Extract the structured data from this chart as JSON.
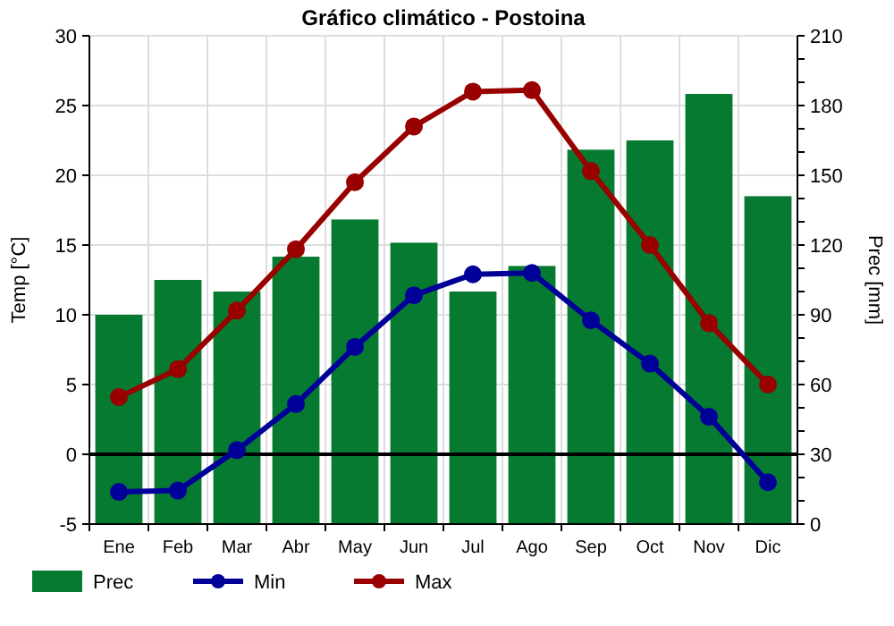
{
  "chart_data": {
    "type": "bar",
    "title": "Gráfico climático - Postoina",
    "ylabel": "Temp [°C]",
    "y2label": "Prec [mm]",
    "categories": [
      "Ene",
      "Feb",
      "Mar",
      "Abr",
      "May",
      "Jun",
      "Jul",
      "Ago",
      "Sep",
      "Oct",
      "Nov",
      "Dic"
    ],
    "series": [
      {
        "name": "Prec",
        "axis": "y2",
        "color": "#057a30",
        "values": [
          90,
          105,
          100,
          115,
          131,
          121,
          100,
          111,
          161,
          165,
          185,
          141
        ]
      },
      {
        "name": "Min",
        "type": "line",
        "color": "#000099",
        "marker": "circle",
        "values": [
          -2.7,
          -2.6,
          0.3,
          3.6,
          7.7,
          11.4,
          12.9,
          13,
          9.6,
          6.5,
          2.7,
          -2.0
        ]
      },
      {
        "name": "Max",
        "type": "line",
        "color": "#990000",
        "marker": "circle",
        "values": [
          4.1,
          6.1,
          10.3,
          14.7,
          19.5,
          23.5,
          26.0,
          26.1,
          20.3,
          15.0,
          9.4,
          5.0
        ]
      }
    ],
    "ylim": [
      -5,
      30
    ],
    "yticks": [
      -5,
      0,
      5,
      10,
      15,
      20,
      25,
      30
    ],
    "y2lim": [
      0,
      210
    ],
    "y2ticks": [
      0,
      {
        "value": 10,
        "label": null
      },
      {
        "value": 20,
        "label": null
      },
      30,
      {
        "value": 40,
        "label": null
      },
      {
        "value": 50,
        "label": null
      },
      60,
      {
        "value": 70,
        "label": null
      },
      {
        "value": 80,
        "label": null
      },
      90,
      {
        "value": 100,
        "label": null
      },
      {
        "value": 110,
        "label": null
      },
      120,
      {
        "value": 130,
        "label": null
      },
      {
        "value": 140,
        "label": null
      },
      150,
      {
        "value": 160,
        "label": null
      },
      {
        "value": 170,
        "label": null
      },
      180,
      {
        "value": 190,
        "label": null
      },
      {
        "value": 200,
        "label": null
      },
      210
    ],
    "ref_lines": [
      {
        "axis": "y",
        "value": 0,
        "color": "#000000"
      }
    ],
    "grid": true,
    "legend": "bottom left"
  }
}
